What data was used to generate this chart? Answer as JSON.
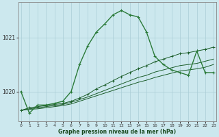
{
  "xlabel": "Graphe pression niveau de la mer (hPa)",
  "x_ticks": [
    0,
    1,
    2,
    3,
    4,
    5,
    6,
    7,
    8,
    9,
    10,
    11,
    12,
    13,
    14,
    15,
    16,
    17,
    18,
    19,
    20,
    21,
    22,
    23
  ],
  "ylim": [
    1019.45,
    1021.65
  ],
  "yticks": [
    1020,
    1021
  ],
  "background_color": "#cce8ee",
  "grid_color": "#aacdd6",
  "line_color_dark": "#1a5c28",
  "line_color_main": "#2a7a38",
  "series_main_x": [
    0,
    1,
    2,
    3,
    4,
    5,
    6,
    7,
    8,
    9,
    10,
    11,
    12,
    13,
    14,
    15,
    16,
    17,
    18,
    19,
    20,
    21,
    22,
    23
  ],
  "series_main_y": [
    1020.0,
    1019.6,
    1019.75,
    1019.75,
    1019.78,
    1019.82,
    1020.0,
    1020.5,
    1020.85,
    1021.1,
    1021.25,
    1021.42,
    1021.5,
    1021.42,
    1021.38,
    1021.1,
    1020.65,
    1020.5,
    1020.4,
    1020.35,
    1020.3,
    1020.75,
    1020.35,
    1020.35
  ],
  "series2_x": [
    0,
    1,
    2,
    3,
    4,
    5,
    6,
    7,
    8,
    9,
    10,
    11,
    12,
    13,
    14,
    15,
    16,
    17,
    18,
    19,
    20,
    21,
    22,
    23
  ],
  "series2_y": [
    1019.65,
    1019.7,
    1019.72,
    1019.74,
    1019.76,
    1019.78,
    1019.82,
    1019.88,
    1019.95,
    1020.05,
    1020.12,
    1020.2,
    1020.28,
    1020.35,
    1020.42,
    1020.48,
    1020.55,
    1020.6,
    1020.65,
    1020.7,
    1020.72,
    1020.75,
    1020.78,
    1020.82
  ],
  "series3_x": [
    0,
    1,
    2,
    3,
    4,
    5,
    6,
    7,
    8,
    9,
    10,
    11,
    12,
    13,
    14,
    15,
    16,
    17,
    18,
    19,
    20,
    21,
    22,
    23
  ],
  "series3_y": [
    1019.65,
    1019.68,
    1019.7,
    1019.72,
    1019.74,
    1019.76,
    1019.8,
    1019.85,
    1019.9,
    1019.96,
    1020.02,
    1020.08,
    1020.14,
    1020.2,
    1020.26,
    1020.3,
    1020.36,
    1020.4,
    1020.44,
    1020.48,
    1020.5,
    1020.52,
    1020.56,
    1020.6
  ],
  "series4_x": [
    0,
    1,
    2,
    3,
    4,
    5,
    6,
    7,
    8,
    9,
    10,
    11,
    12,
    13,
    14,
    15,
    16,
    17,
    18,
    19,
    20,
    21,
    22,
    23
  ],
  "series4_y": [
    1019.65,
    1019.67,
    1019.68,
    1019.7,
    1019.72,
    1019.74,
    1019.77,
    1019.82,
    1019.87,
    1019.92,
    1019.97,
    1020.02,
    1020.07,
    1020.12,
    1020.17,
    1020.21,
    1020.26,
    1020.3,
    1020.34,
    1020.38,
    1020.4,
    1020.42,
    1020.45,
    1020.5
  ]
}
